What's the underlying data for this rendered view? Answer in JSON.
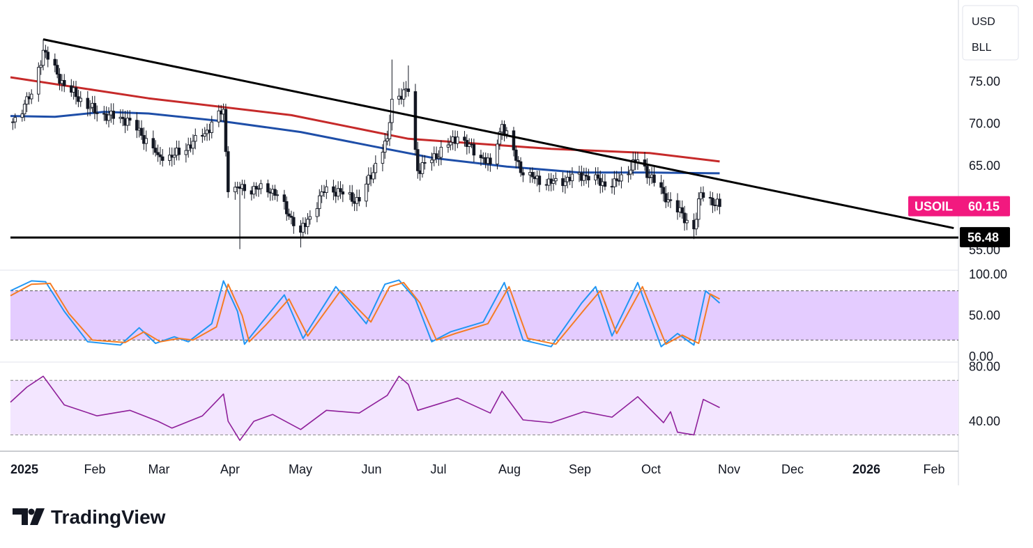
{
  "header": {
    "currency": "USD",
    "unit": "BLL"
  },
  "symbol_tag": {
    "symbol": "USOIL",
    "price": "60.15",
    "color": "#f2197f"
  },
  "support_tag": {
    "value": "56.48",
    "color": "#000000"
  },
  "logo": {
    "text": "TradingView"
  },
  "colors": {
    "candle": "#131722",
    "ma_red": "#c62a2a",
    "ma_blue": "#1e4ea8",
    "stoch_k": "#2196f3",
    "stoch_d": "#f57c24",
    "rsi": "#8e1f9a",
    "stoch_band": "#e4ccff",
    "rsi_band": "#f3e6ff"
  },
  "chart_data": [
    {
      "type": "candlestick",
      "panel": "price",
      "x_axis": {
        "labels": [
          "2025",
          "Feb",
          "Mar",
          "Apr",
          "May",
          "Jun",
          "Jul",
          "Aug",
          "Sep",
          "Oct",
          "Nov",
          "Dec",
          "2026",
          "Feb"
        ]
      },
      "y_axis": {
        "labels": [
          "75.00",
          "70.00",
          "65.00",
          "55.00"
        ],
        "range": [
          54,
          79
        ]
      },
      "last_price": 60.15,
      "ohlc_anchors": [
        {
          "date": "2025-01-02",
          "close": 70.2
        },
        {
          "date": "2025-01-10",
          "close": 73.5
        },
        {
          "date": "2025-01-15",
          "high": 80.0,
          "close": 78.7
        },
        {
          "date": "2025-01-24",
          "close": 74.5
        },
        {
          "date": "2025-02-07",
          "close": 71.2
        },
        {
          "date": "2025-02-21",
          "close": 70.4
        },
        {
          "date": "2025-03-05",
          "close": 66.3
        },
        {
          "date": "2025-03-11",
          "low": 64.9,
          "close": 66.0
        },
        {
          "date": "2025-03-24",
          "close": 68.5
        },
        {
          "date": "2025-04-02",
          "close": 71.7
        },
        {
          "date": "2025-04-04",
          "close": 61.9
        },
        {
          "date": "2025-04-09",
          "low": 55.1,
          "close": 62.3
        },
        {
          "date": "2025-04-23",
          "close": 62.2
        },
        {
          "date": "2025-05-05",
          "low": 55.3,
          "close": 57.1
        },
        {
          "date": "2025-05-16",
          "close": 62.5
        },
        {
          "date": "2025-05-30",
          "close": 60.8
        },
        {
          "date": "2025-06-11",
          "close": 68.2
        },
        {
          "date": "2025-06-13",
          "high": 77.6,
          "close": 72.9
        },
        {
          "date": "2025-06-20",
          "high": 76.9,
          "close": 73.8
        },
        {
          "date": "2025-06-24",
          "close": 64.4
        },
        {
          "date": "2025-07-11",
          "close": 68.4
        },
        {
          "date": "2025-07-25",
          "close": 65.2
        },
        {
          "date": "2025-07-30",
          "high": 70.4,
          "close": 69.9
        },
        {
          "date": "2025-08-08",
          "close": 63.9
        },
        {
          "date": "2025-08-20",
          "close": 62.9
        },
        {
          "date": "2025-09-03",
          "close": 63.9
        },
        {
          "date": "2025-09-15",
          "close": 62.5
        },
        {
          "date": "2025-09-26",
          "close": 65.7
        },
        {
          "date": "2025-10-07",
          "close": 61.7
        },
        {
          "date": "2025-10-20",
          "low": 56.3,
          "close": 57.5
        },
        {
          "date": "2025-10-23",
          "high": 62.5,
          "close": 61.8
        },
        {
          "date": "2025-10-31",
          "close": 60.15
        }
      ],
      "trendline": [
        {
          "date": "2025-01-15",
          "value": 80.0
        },
        {
          "date": "2026-02-08",
          "value": 57.6
        }
      ],
      "support_line": 56.48,
      "moving_averages": [
        {
          "points": [
            [
              "2025-01-01",
              75.5
            ],
            [
              "2025-03-01",
              73.0
            ],
            [
              "2025-05-01",
              71.0
            ],
            [
              "2025-06-20",
              68.2
            ],
            [
              "2025-08-20",
              67.0
            ],
            [
              "2025-10-01",
              66.5
            ],
            [
              "2025-10-31",
              65.5
            ]
          ]
        },
        {
          "points": [
            [
              "2025-01-01",
              70.9
            ],
            [
              "2025-01-20",
              70.8
            ],
            [
              "2025-02-10",
              71.4
            ],
            [
              "2025-03-01",
              71.2
            ],
            [
              "2025-04-01",
              70.3
            ],
            [
              "2025-05-05",
              69.0
            ],
            [
              "2025-06-05",
              67.3
            ],
            [
              "2025-07-01",
              65.9
            ],
            [
              "2025-08-01",
              64.9
            ],
            [
              "2025-09-01",
              64.2
            ],
            [
              "2025-10-01",
              64.2
            ],
            [
              "2025-10-31",
              64.1
            ]
          ]
        }
      ]
    },
    {
      "type": "line",
      "panel": "stochastic",
      "y_axis": {
        "labels": [
          "100.00",
          "50.00",
          "0.00"
        ],
        "range": [
          0,
          100
        ]
      },
      "band": [
        20,
        80
      ],
      "series": [
        {
          "points": [
            [
              "2025-01-01",
              80
            ],
            [
              "2025-01-10",
              92
            ],
            [
              "2025-01-16",
              91
            ],
            [
              "2025-01-24",
              55
            ],
            [
              "2025-02-03",
              18
            ],
            [
              "2025-02-17",
              14
            ],
            [
              "2025-02-25",
              35
            ],
            [
              "2025-03-04",
              16
            ],
            [
              "2025-03-12",
              24
            ],
            [
              "2025-03-18",
              18
            ],
            [
              "2025-03-28",
              40
            ],
            [
              "2025-04-02",
              92
            ],
            [
              "2025-04-08",
              55
            ],
            [
              "2025-04-11",
              15
            ],
            [
              "2025-04-18",
              40
            ],
            [
              "2025-04-28",
              75
            ],
            [
              "2025-05-06",
              22
            ],
            [
              "2025-05-20",
              85
            ],
            [
              "2025-06-02",
              40
            ],
            [
              "2025-06-10",
              88
            ],
            [
              "2025-06-16",
              93
            ],
            [
              "2025-06-23",
              70
            ],
            [
              "2025-06-30",
              18
            ],
            [
              "2025-07-08",
              30
            ],
            [
              "2025-07-22",
              42
            ],
            [
              "2025-07-31",
              90
            ],
            [
              "2025-08-08",
              20
            ],
            [
              "2025-08-20",
              12
            ],
            [
              "2025-09-02",
              65
            ],
            [
              "2025-09-08",
              85
            ],
            [
              "2025-09-15",
              25
            ],
            [
              "2025-09-26",
              90
            ],
            [
              "2025-10-06",
              12
            ],
            [
              "2025-10-13",
              28
            ],
            [
              "2025-10-20",
              14
            ],
            [
              "2025-10-25",
              80
            ],
            [
              "2025-10-31",
              65
            ]
          ]
        },
        {
          "points": [
            [
              "2025-01-01",
              74
            ],
            [
              "2025-01-10",
              88
            ],
            [
              "2025-01-18",
              89
            ],
            [
              "2025-01-26",
              52
            ],
            [
              "2025-02-05",
              20
            ],
            [
              "2025-02-19",
              17
            ],
            [
              "2025-02-27",
              30
            ],
            [
              "2025-03-06",
              18
            ],
            [
              "2025-03-14",
              22
            ],
            [
              "2025-03-20",
              20
            ],
            [
              "2025-03-30",
              36
            ],
            [
              "2025-04-04",
              88
            ],
            [
              "2025-04-10",
              50
            ],
            [
              "2025-04-13",
              18
            ],
            [
              "2025-04-20",
              38
            ],
            [
              "2025-04-30",
              70
            ],
            [
              "2025-05-08",
              25
            ],
            [
              "2025-05-22",
              80
            ],
            [
              "2025-06-04",
              42
            ],
            [
              "2025-06-12",
              85
            ],
            [
              "2025-06-18",
              90
            ],
            [
              "2025-06-25",
              65
            ],
            [
              "2025-07-02",
              20
            ],
            [
              "2025-07-10",
              28
            ],
            [
              "2025-07-24",
              40
            ],
            [
              "2025-08-02",
              85
            ],
            [
              "2025-08-10",
              22
            ],
            [
              "2025-08-22",
              15
            ],
            [
              "2025-09-04",
              60
            ],
            [
              "2025-09-10",
              80
            ],
            [
              "2025-09-17",
              28
            ],
            [
              "2025-09-28",
              85
            ],
            [
              "2025-10-08",
              15
            ],
            [
              "2025-10-15",
              26
            ],
            [
              "2025-10-22",
              16
            ],
            [
              "2025-10-27",
              76
            ],
            [
              "2025-10-31",
              70
            ]
          ]
        }
      ]
    },
    {
      "type": "line",
      "panel": "rsi",
      "y_axis": {
        "labels": [
          "80.00",
          "40.00"
        ],
        "range": [
          20,
          80
        ]
      },
      "band": [
        30,
        70
      ],
      "series": [
        {
          "points": [
            [
              "2025-01-01",
              54
            ],
            [
              "2025-01-08",
              65
            ],
            [
              "2025-01-15",
              73
            ],
            [
              "2025-01-24",
              52
            ],
            [
              "2025-02-07",
              44
            ],
            [
              "2025-02-21",
              48
            ],
            [
              "2025-03-05",
              40
            ],
            [
              "2025-03-11",
              35
            ],
            [
              "2025-03-24",
              44
            ],
            [
              "2025-04-02",
              60
            ],
            [
              "2025-04-04",
              40
            ],
            [
              "2025-04-09",
              26
            ],
            [
              "2025-04-15",
              40
            ],
            [
              "2025-04-23",
              45
            ],
            [
              "2025-05-05",
              34
            ],
            [
              "2025-05-16",
              48
            ],
            [
              "2025-05-30",
              46
            ],
            [
              "2025-06-11",
              59
            ],
            [
              "2025-06-16",
              73
            ],
            [
              "2025-06-20",
              67
            ],
            [
              "2025-06-24",
              48
            ],
            [
              "2025-07-11",
              57
            ],
            [
              "2025-07-25",
              46
            ],
            [
              "2025-07-30",
              62
            ],
            [
              "2025-08-08",
              41
            ],
            [
              "2025-08-20",
              39
            ],
            [
              "2025-09-03",
              47
            ],
            [
              "2025-09-15",
              43
            ],
            [
              "2025-09-26",
              58
            ],
            [
              "2025-10-07",
              39
            ],
            [
              "2025-10-10",
              47
            ],
            [
              "2025-10-13",
              32
            ],
            [
              "2025-10-20",
              30
            ],
            [
              "2025-10-24",
              56
            ],
            [
              "2025-10-31",
              50
            ]
          ]
        }
      ]
    }
  ]
}
